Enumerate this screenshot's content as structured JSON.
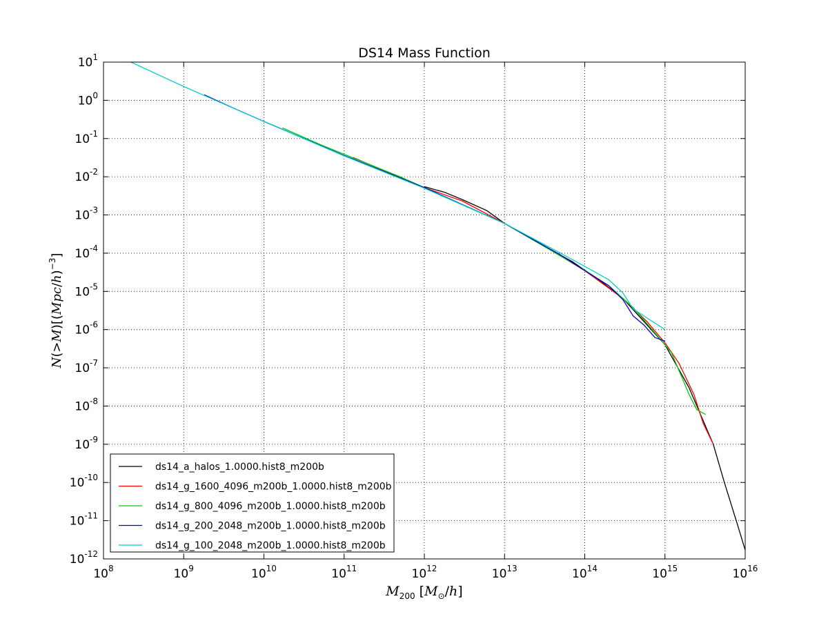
{
  "chart_data": {
    "type": "line",
    "title": "DS14 Mass Function",
    "xlabel": "M_200 [M_⊙/h]",
    "ylabel": "N(>M) [(Mpc/h)^-3]",
    "xscale": "log",
    "yscale": "log",
    "xlim": [
      100000000.0,
      1e+16
    ],
    "ylim": [
      1e-12,
      10
    ],
    "grid": true,
    "legend_position": "lower-left",
    "x_tick_exponents": [
      8,
      9,
      10,
      11,
      12,
      13,
      14,
      15,
      16
    ],
    "y_tick_exponents": [
      1,
      0,
      -1,
      -2,
      -3,
      -4,
      -5,
      -6,
      -7,
      -8,
      -9,
      -10,
      -11,
      -12
    ],
    "tick_base": "10",
    "series": [
      {
        "name": "ds14_a_halos_1.0000.hist8_m200b",
        "color": "#000000",
        "points": [
          [
            1000000000000.0,
            0.0055
          ],
          [
            1800000000000.0,
            0.0039
          ],
          [
            3000000000000.0,
            0.0025
          ],
          [
            6000000000000.0,
            0.0013
          ],
          [
            10000000000000.0,
            0.0006
          ],
          [
            30000000000000.0,
            0.00016
          ],
          [
            70000000000000.0,
            6e-05
          ],
          [
            150000000000000.0,
            2e-05
          ],
          [
            300000000000000.0,
            6.5e-06
          ],
          [
            500000000000000.0,
            2e-06
          ],
          [
            1000000000000000.0,
            4e-07
          ],
          [
            2000000000000000.0,
            3e-08
          ],
          [
            4000000000000000.0,
            1e-09
          ],
          [
            5500000000000000.0,
            1e-10
          ],
          [
            8000000000000000.0,
            8e-12
          ],
          [
            1e+16,
            1.7e-12
          ]
        ]
      },
      {
        "name": "ds14_g_1600_4096_m200b_1.0000.hist8_m200b",
        "color": "#ff0000",
        "points": [
          [
            130000000000.0,
            0.032
          ],
          [
            300000000000.0,
            0.015
          ],
          [
            1000000000000.0,
            0.0052
          ],
          [
            3000000000000.0,
            0.0023
          ],
          [
            10000000000000.0,
            0.0006
          ],
          [
            30000000000000.0,
            0.00016
          ],
          [
            100000000000000.0,
            3.5e-05
          ],
          [
            300000000000000.0,
            6.5e-06
          ],
          [
            600000000000000.0,
            1.6e-06
          ],
          [
            1000000000000000.0,
            4.5e-07
          ],
          [
            1500000000000000.0,
            1.3e-07
          ],
          [
            2300000000000000.0,
            2e-08
          ],
          [
            3000000000000000.0,
            3.5e-09
          ],
          [
            4000000000000000.0,
            1e-09
          ]
        ]
      },
      {
        "name": "ds14_g_800_4096_m200b_1.0000.hist8_m200b",
        "color": "#00cc00",
        "points": [
          [
            17000000000.0,
            0.19
          ],
          [
            50000000000.0,
            0.07
          ],
          [
            130000000000.0,
            0.031
          ],
          [
            500000000000.0,
            0.01
          ],
          [
            1000000000000.0,
            0.0052
          ],
          [
            10000000000000.0,
            0.0006
          ],
          [
            100000000000000.0,
            3.6e-05
          ],
          [
            200000000000000.0,
            1.4e-05
          ],
          [
            400000000000000.0,
            3.8e-06
          ],
          [
            800000000000000.0,
            7e-07
          ],
          [
            1200000000000000.0,
            2.5e-07
          ],
          [
            2000000000000000.0,
            2e-08
          ],
          [
            2500000000000000.0,
            8e-09
          ],
          [
            3200000000000000.0,
            6e-09
          ]
        ]
      },
      {
        "name": "ds14_g_200_2048_m200b_1.0000.hist8_m200b",
        "color": "#0000cc",
        "points": [
          [
            1800000000.0,
            1.4
          ],
          [
            4000000000.0,
            0.65
          ],
          [
            10000000000.0,
            0.28
          ],
          [
            100000000000.0,
            0.036
          ],
          [
            1000000000000.0,
            0.0052
          ],
          [
            10000000000000.0,
            0.0006
          ],
          [
            50000000000000.0,
            9e-05
          ],
          [
            100000000000000.0,
            3.5e-05
          ],
          [
            200000000000000.0,
            1.4e-05
          ],
          [
            300000000000000.0,
            6e-06
          ],
          [
            400000000000000.0,
            2.3e-06
          ],
          [
            550000000000000.0,
            1.3e-06
          ],
          [
            750000000000000.0,
            6.2e-07
          ],
          [
            1000000000000000.0,
            5e-07
          ]
        ]
      },
      {
        "name": "ds14_g_100_2048_m200b_1.0000.hist8_m200b",
        "color": "#00cccc",
        "points": [
          [
            220000000.0,
            10
          ],
          [
            1000000000.0,
            2.3
          ],
          [
            10000000000.0,
            0.28
          ],
          [
            100000000000.0,
            0.035
          ],
          [
            1000000000000.0,
            0.005
          ],
          [
            10000000000000.0,
            0.0006
          ],
          [
            50000000000000.0,
            0.0001
          ],
          [
            100000000000000.0,
            4.5e-05
          ],
          [
            200000000000000.0,
            2e-05
          ],
          [
            300000000000000.0,
            9e-06
          ],
          [
            400000000000000.0,
            3.5e-06
          ],
          [
            600000000000000.0,
            2e-06
          ],
          [
            1000000000000000.0,
            1e-06
          ]
        ]
      }
    ]
  }
}
